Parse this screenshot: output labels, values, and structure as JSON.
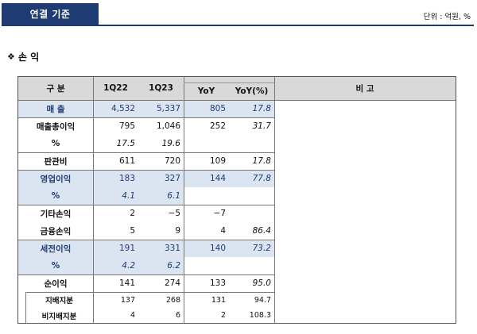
{
  "header": {
    "tab_label": "연결 기준",
    "unit_label": "단위 : 억원, %"
  },
  "section": {
    "bullet_icon": "diamond-icon",
    "bullet": "❖",
    "title": "손 익"
  },
  "table": {
    "columns": {
      "category": "구 분",
      "q1_22": "1Q22",
      "q1_23": "1Q23",
      "yoy": "YoY",
      "yoy_pct": "YoY(%)",
      "remarks": "비 고"
    },
    "rows": [
      {
        "label": "매 출",
        "q1_22": "4,532",
        "q1_23": "5,337",
        "yoy": "805",
        "yoy_pct": "17.8"
      },
      {
        "label": "매출총이익",
        "q1_22": "795",
        "q1_23": "1,046",
        "yoy": "252",
        "yoy_pct": "31.7"
      },
      {
        "label": "%",
        "q1_22": "17.5",
        "q1_23": "19.6",
        "yoy": "",
        "yoy_pct": ""
      },
      {
        "label": "판관비",
        "q1_22": "611",
        "q1_23": "720",
        "yoy": "109",
        "yoy_pct": "17.8"
      },
      {
        "label": "영업이익",
        "q1_22": "183",
        "q1_23": "327",
        "yoy": "144",
        "yoy_pct": "77.8"
      },
      {
        "label": "%",
        "q1_22": "4.1",
        "q1_23": "6.1",
        "yoy": "",
        "yoy_pct": ""
      },
      {
        "label": "기타손익",
        "q1_22": "2",
        "q1_23": "−5",
        "yoy": "−7",
        "yoy_pct": ""
      },
      {
        "label": "금융손익",
        "q1_22": "5",
        "q1_23": "9",
        "yoy": "4",
        "yoy_pct": "86.4"
      },
      {
        "label": "세전이익",
        "q1_22": "191",
        "q1_23": "331",
        "yoy": "140",
        "yoy_pct": "73.2"
      },
      {
        "label": "%",
        "q1_22": "4.2",
        "q1_23": "6.2",
        "yoy": "",
        "yoy_pct": ""
      },
      {
        "label": "순이익",
        "q1_22": "141",
        "q1_23": "274",
        "yoy": "133",
        "yoy_pct": "95.0"
      },
      {
        "label": "지배지분",
        "q1_22": "137",
        "q1_23": "268",
        "yoy": "131",
        "yoy_pct": "94.7"
      },
      {
        "label": "비지배지분",
        "q1_22": "4",
        "q1_23": "6",
        "yoy": "2",
        "yoy_pct": "108.3"
      }
    ]
  },
  "colors": {
    "navy": "#1f3b73",
    "header_gray": "#d9d9d9",
    "highlight": "#dbe4f1"
  }
}
